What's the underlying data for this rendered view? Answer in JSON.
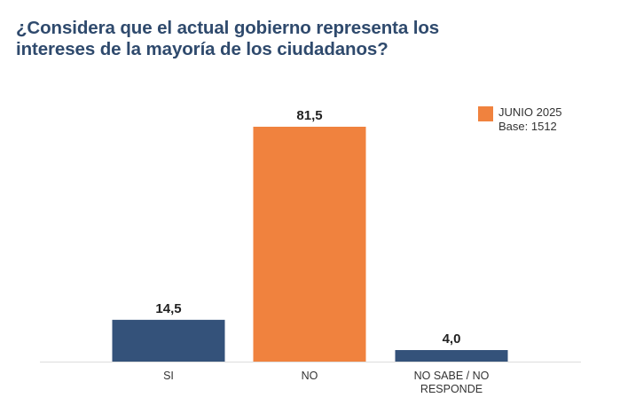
{
  "chart_data": {
    "type": "bar",
    "title_lines": [
      "¿Considera que el actual gobierno representa los",
      "intereses de la mayoría de los ciudadanos?"
    ],
    "categories": [
      [
        "SI"
      ],
      [
        "NO"
      ],
      [
        "NO SABE / NO",
        "RESPONDE"
      ]
    ],
    "values": [
      14.5,
      81.5,
      4.0
    ],
    "value_labels": [
      "14,5",
      "81,5",
      "4,0"
    ],
    "bar_colors": [
      "#34527a",
      "#f0823e",
      "#34527a"
    ],
    "ylim": [
      0,
      100
    ],
    "legend": {
      "label": "JUNIO 2025",
      "note": "Base: 1512",
      "color": "#f0823e",
      "position": "top-right"
    }
  }
}
